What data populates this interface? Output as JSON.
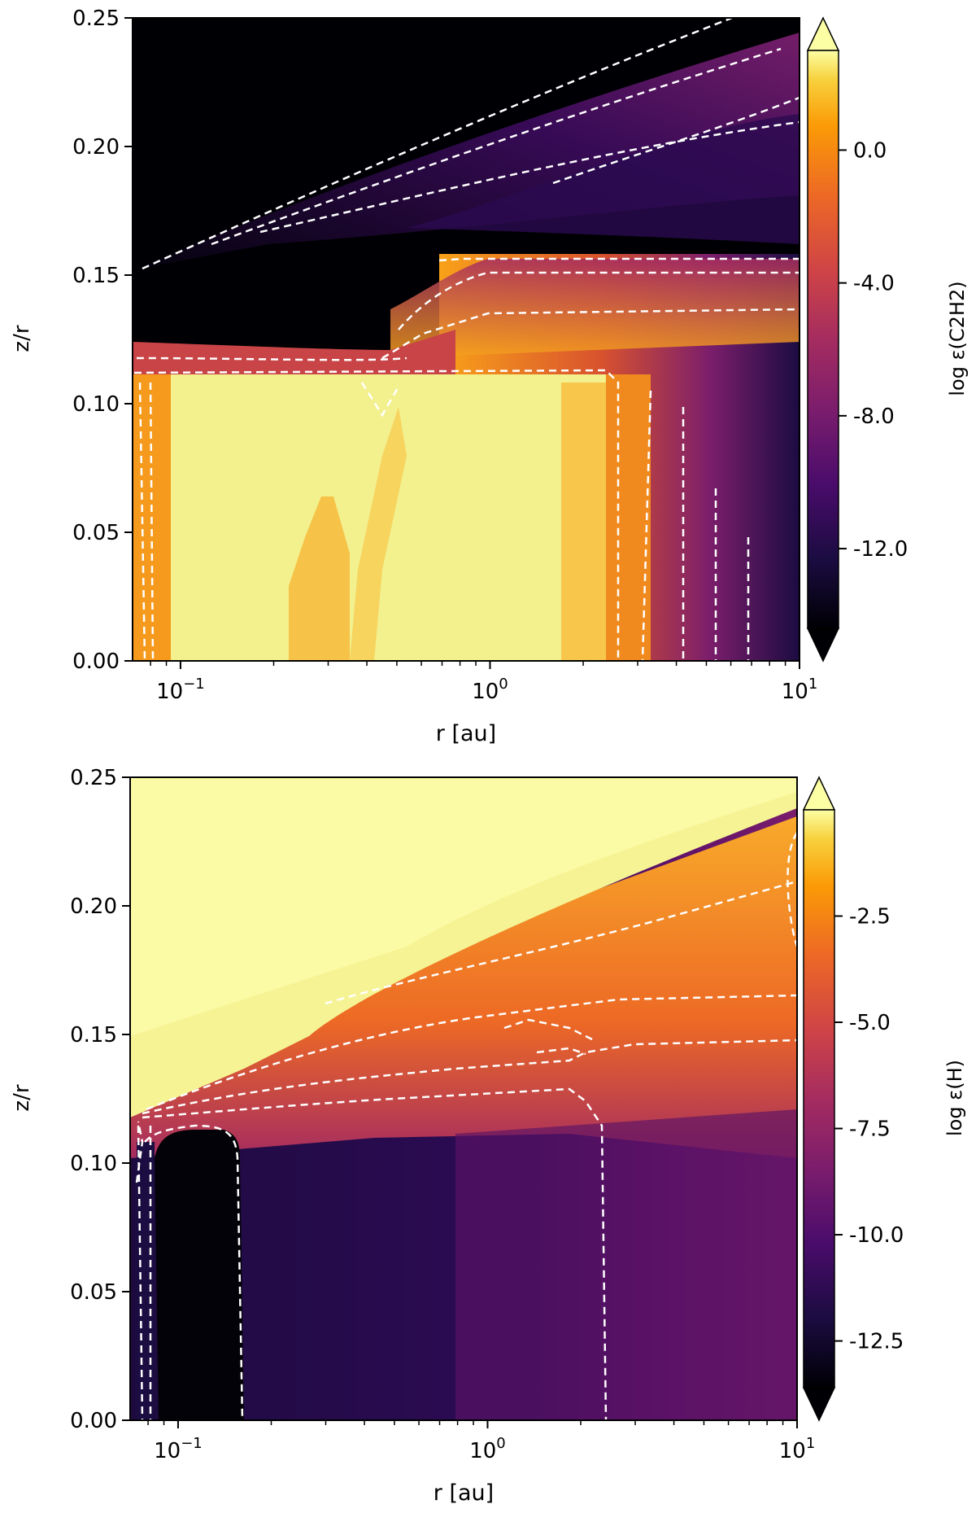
{
  "chart_data": [
    {
      "type": "heatmap",
      "title": "",
      "xlabel": "r [au]",
      "ylabel": "z/r",
      "xscale": "log",
      "xlim": [
        0.07,
        10
      ],
      "ylim": [
        0.0,
        0.25
      ],
      "x_ticks": [
        {
          "value": 0.1,
          "base": "10",
          "exp": "−1"
        },
        {
          "value": 1,
          "base": "10",
          "exp": "0"
        },
        {
          "value": 10,
          "base": "10",
          "exp": "1"
        }
      ],
      "y_ticks": [
        "0.00",
        "0.05",
        "0.10",
        "0.15",
        "0.20",
        "0.25"
      ],
      "colorbar": {
        "label": "log ε(C2H2)",
        "range": [
          -14.4,
          3.0
        ],
        "ticks": [
          "0.0",
          "-4.0",
          "-8.0",
          "-12.0"
        ],
        "tick_values": [
          0.0,
          -4.0,
          -8.0,
          -12.0
        ],
        "extend": "both",
        "cmap": "inferno"
      },
      "contours": {
        "style": "dashed",
        "color": "#ffffff"
      }
    },
    {
      "type": "heatmap",
      "title": "",
      "xlabel": "r [au]",
      "ylabel": "z/r",
      "xscale": "log",
      "xlim": [
        0.07,
        10
      ],
      "ylim": [
        0.0,
        0.25
      ],
      "x_ticks": [
        {
          "value": 0.1,
          "base": "10",
          "exp": "−1"
        },
        {
          "value": 1,
          "base": "10",
          "exp": "0"
        },
        {
          "value": 10,
          "base": "10",
          "exp": "1"
        }
      ],
      "y_ticks": [
        "0.00",
        "0.05",
        "0.10",
        "0.15",
        "0.20",
        "0.25"
      ],
      "colorbar": {
        "label": "log ε(H)",
        "range": [
          -13.6,
          0.0
        ],
        "ticks": [
          "-2.5",
          "-5.0",
          "-7.5",
          "-10.0",
          "-12.5"
        ],
        "tick_values": [
          -2.5,
          -5.0,
          -7.5,
          -10.0,
          -12.5
        ],
        "extend": "both",
        "cmap": "inferno"
      },
      "contours": {
        "style": "dashed",
        "color": "#ffffff"
      }
    }
  ]
}
